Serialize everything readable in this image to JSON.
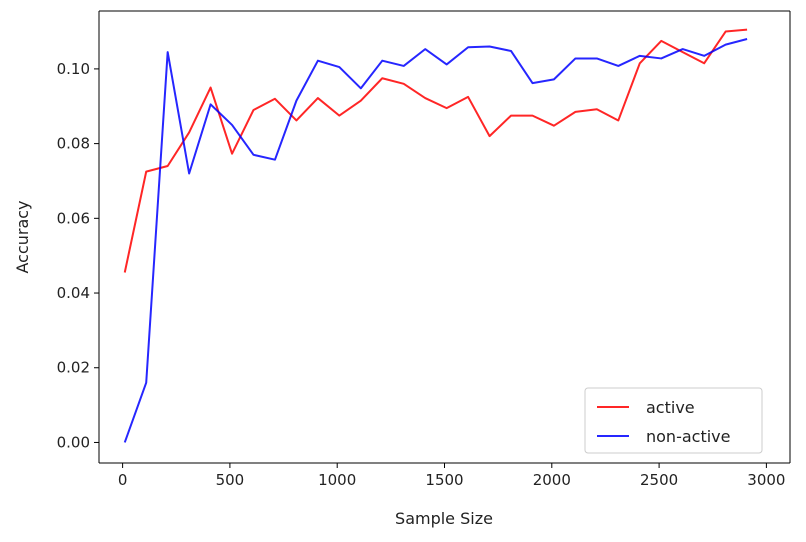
{
  "chart_data": {
    "type": "line",
    "title": "",
    "xlabel": "Sample Size",
    "ylabel": "Accuracy",
    "xlim": [
      -110,
      3110
    ],
    "ylim": [
      -0.0055,
      0.1155
    ],
    "xticks": [
      0,
      500,
      1000,
      1500,
      2000,
      2500,
      3000
    ],
    "xtick_labels": [
      "0",
      "500",
      "1000",
      "1500",
      "2000",
      "2500",
      "3000"
    ],
    "yticks": [
      0.0,
      0.02,
      0.04,
      0.06,
      0.08,
      0.1
    ],
    "ytick_labels": [
      "0.00",
      "0.02",
      "0.04",
      "0.06",
      "0.08",
      "0.10"
    ],
    "grid": false,
    "legend_position": "lower-right",
    "x": [
      10,
      110,
      210,
      310,
      410,
      510,
      610,
      710,
      810,
      910,
      1010,
      1110,
      1210,
      1310,
      1410,
      1510,
      1610,
      1710,
      1810,
      1910,
      2010,
      2110,
      2210,
      2310,
      2410,
      2510,
      2610,
      2710,
      2810,
      2910
    ],
    "series": [
      {
        "name": "active",
        "color": "#ff0000",
        "values": [
          0.0455,
          0.0725,
          0.074,
          0.083,
          0.095,
          0.0773,
          0.089,
          0.092,
          0.0862,
          0.0922,
          0.0875,
          0.0915,
          0.0975,
          0.096,
          0.0922,
          0.0895,
          0.0925,
          0.082,
          0.0875,
          0.0875,
          0.0848,
          0.0885,
          0.0892,
          0.0862,
          0.1015,
          0.1075,
          0.1045,
          0.1015,
          0.11,
          0.1105
        ]
      },
      {
        "name": "non-active",
        "color": "#0000ff",
        "values": [
          0.0,
          0.016,
          0.1045,
          0.072,
          0.0905,
          0.085,
          0.077,
          0.0757,
          0.0915,
          0.1022,
          0.1005,
          0.0948,
          0.1022,
          0.1008,
          0.1053,
          0.1012,
          0.1058,
          0.106,
          0.1048,
          0.0962,
          0.0972,
          0.1028,
          0.1028,
          0.1008,
          0.1035,
          0.1028,
          0.1053,
          0.1035,
          0.1065,
          0.108
        ]
      }
    ]
  }
}
